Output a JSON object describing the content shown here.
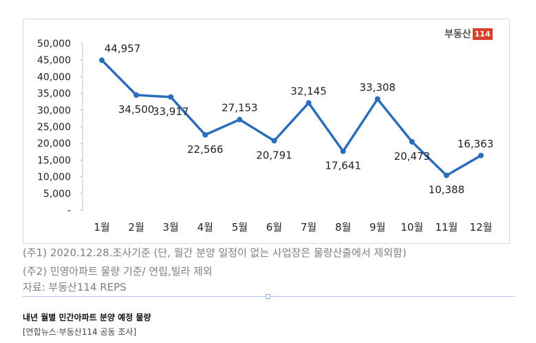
{
  "chart_data": {
    "type": "line",
    "categories": [
      "1월",
      "2월",
      "3월",
      "4월",
      "5월",
      "6월",
      "7월",
      "8월",
      "9월",
      "10월",
      "11월",
      "12월"
    ],
    "values": [
      44957,
      34500,
      33917,
      22566,
      27153,
      20791,
      32145,
      17641,
      33308,
      20473,
      10388,
      16363
    ],
    "data_labels": [
      "44,957",
      "34,500",
      "33,917",
      "22,566",
      "27,153",
      "20,791",
      "32,145",
      "17,641",
      "33,308",
      "20,473",
      "10,388",
      "16,363"
    ],
    "y_ticks": [
      "-",
      "5,000",
      "10,000",
      "15,000",
      "20,000",
      "25,000",
      "30,000",
      "35,000",
      "40,000",
      "45,000",
      "50,000"
    ],
    "ylim": [
      0,
      50000
    ],
    "grid": false,
    "legend": "none",
    "line_color": "#2a6ebb"
  },
  "logo": {
    "text": "부동산",
    "num": "114"
  },
  "notes": [
    "(주1) 2020.12.28.조사기준 (단, 월간 분양 일정이 없는 사업장은 물량산출에서 제외함)",
    "(주2) 민영아파트 물량 기준/ 연립,빌라 제외",
    "자료: 부동산114 REPS"
  ],
  "caption": {
    "title": "내년 월별 민간아파트 분양 예정 물량",
    "source": "[연합뉴스·부동산114 공동 조사]"
  }
}
